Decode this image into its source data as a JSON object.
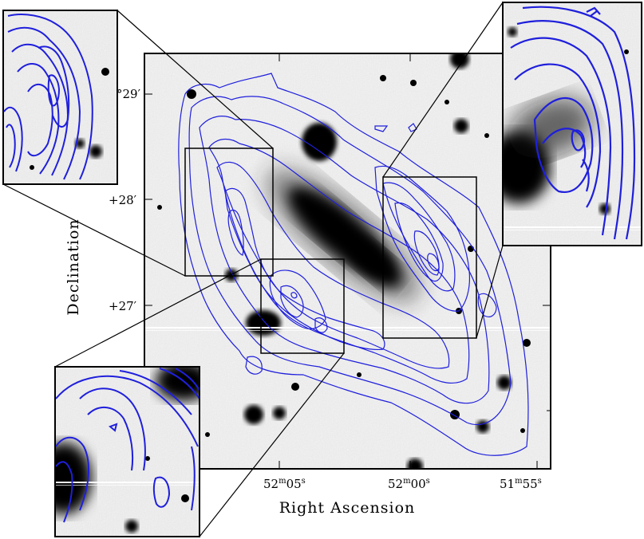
{
  "figure": {
    "axes": {
      "x_label": "Right Ascension",
      "y_label": "Declination",
      "x_ticks": [
        {
          "main": "52",
          "unit": "m",
          "sub": "05",
          "sec": "s"
        },
        {
          "main": "52",
          "unit": "m",
          "sub": "00",
          "sec": "s"
        },
        {
          "main": "51",
          "unit": "m",
          "sub": "55",
          "sec": "s"
        }
      ],
      "y_ticks": [
        "°29′",
        "+28′",
        "+27′"
      ]
    },
    "colors": {
      "contour": "#1f1fdc",
      "frame": "#000000",
      "background_sky": "#e9e9e9"
    },
    "panels": [
      "main-image",
      "inset-top-left",
      "inset-top-right",
      "inset-bottom-left"
    ]
  }
}
